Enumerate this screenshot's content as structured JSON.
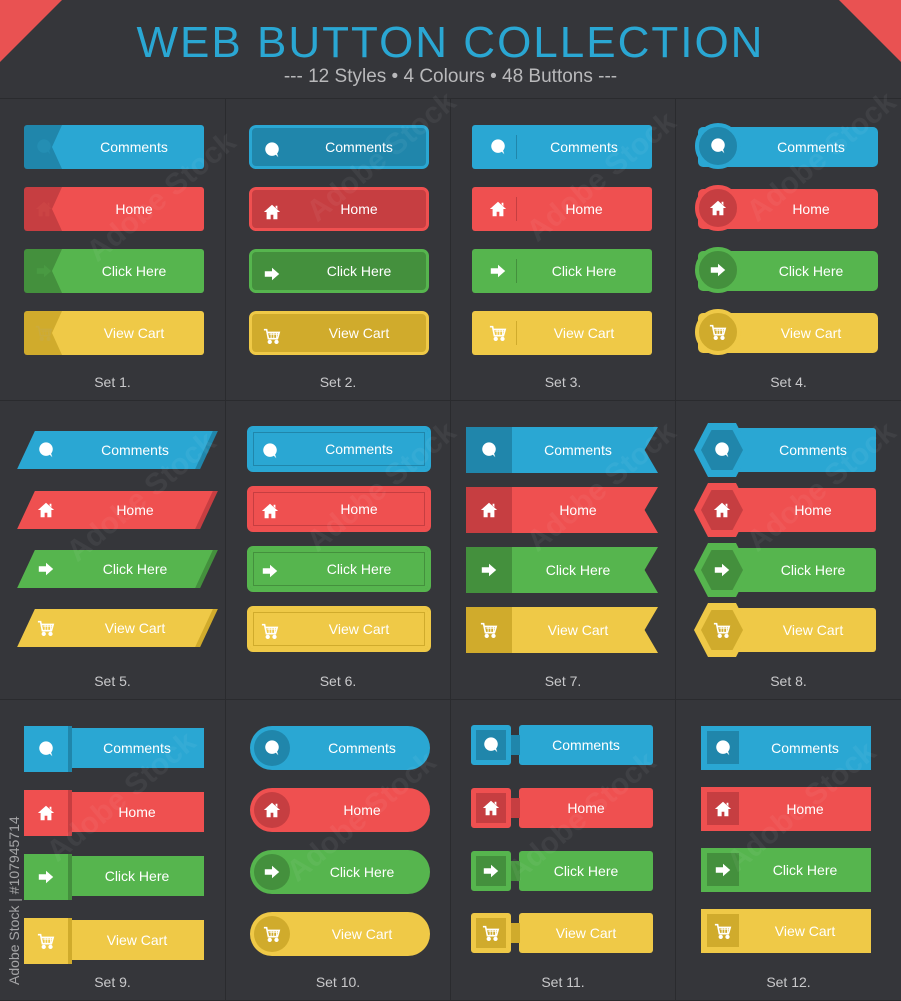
{
  "header": {
    "title": "WEB BUTTON COLLECTION",
    "subtitle": "--- 12 Styles • 4 Colours • 48 Buttons ---"
  },
  "colors": {
    "blue": "#2aa7d3",
    "red": "#ef5050",
    "green": "#56b54e",
    "yellow": "#efc947",
    "blue_dark": "#2086ab",
    "red_dark": "#c63e41",
    "green_dark": "#44903d",
    "yellow_dark": "#d0ab2c",
    "background": "#35363a"
  },
  "buttons": [
    {
      "label": "Comments",
      "icon": "comment-icon",
      "color": "blue"
    },
    {
      "label": "Home",
      "icon": "home-icon",
      "color": "red"
    },
    {
      "label": "Click Here",
      "icon": "arrow-right-icon",
      "color": "green"
    },
    {
      "label": "View Cart",
      "icon": "cart-icon",
      "color": "yellow"
    }
  ],
  "sets": [
    {
      "label": "Set 1."
    },
    {
      "label": "Set 2."
    },
    {
      "label": "Set 3."
    },
    {
      "label": "Set 4."
    },
    {
      "label": "Set 5."
    },
    {
      "label": "Set 6."
    },
    {
      "label": "Set 7."
    },
    {
      "label": "Set 8."
    },
    {
      "label": "Set 9."
    },
    {
      "label": "Set 10."
    },
    {
      "label": "Set 11."
    },
    {
      "label": "Set 12."
    }
  ],
  "watermark": {
    "text": "Adobe Stock",
    "side": "Adobe Stock | #107945714"
  }
}
